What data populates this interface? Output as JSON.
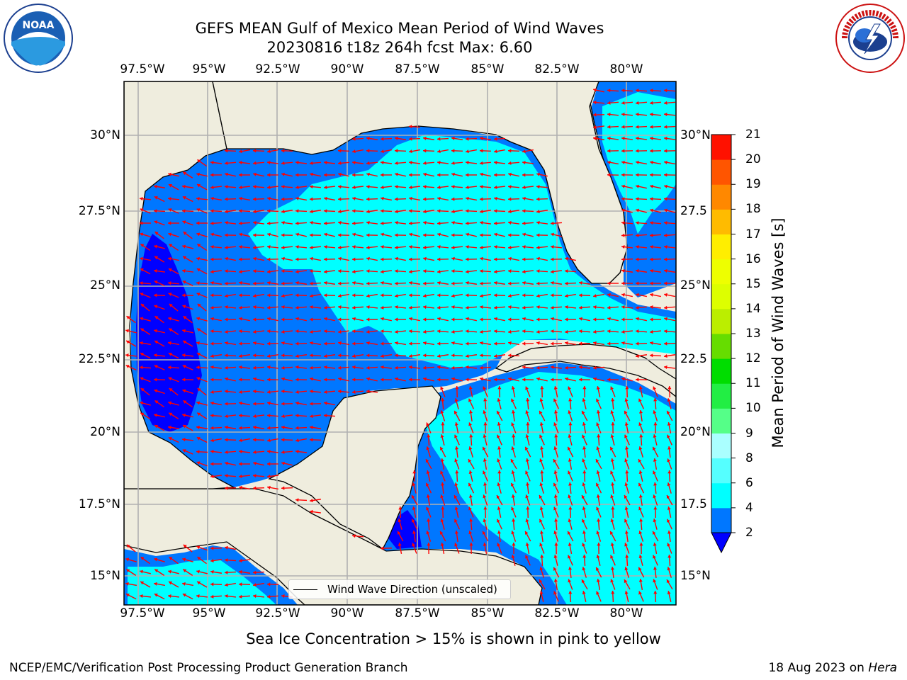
{
  "title": {
    "line1": "GEFS MEAN Gulf of Mexico Mean Period of Wind Waves",
    "line2": "20230816 t18z 264h fcst   Max: 6.60"
  },
  "logos": {
    "left": "NOAA",
    "right": "NATIONAL WEATHER SERVICE"
  },
  "map": {
    "x_ticks": [
      "97.5°W",
      "95°W",
      "92.5°W",
      "90°W",
      "87.5°W",
      "85°W",
      "82.5°W",
      "80°W"
    ],
    "y_ticks_left": [
      "30°N",
      "27.5°N",
      "25°N",
      "22.5°N",
      "20°N",
      "17.5°N",
      "15°N"
    ],
    "y_ticks_right": [
      "30°N",
      "27.5",
      "25°N",
      "22.5",
      "20°N",
      "17.5",
      "15°N"
    ],
    "legend_label": "Wind Wave Direction (unscaled)",
    "colors": {
      "land": "#efedde",
      "level_0_2": "#0000ff",
      "level_2_4": "#0077ff",
      "level_4_6": "#00ffff",
      "arrow": "#ff0000",
      "grid": "#b0b0b0"
    }
  },
  "colorbar": {
    "label": "Mean Period of Wind Waves [s]",
    "ticks": [
      "2",
      "4",
      "6",
      "8",
      "9",
      "10",
      "11",
      "12",
      "13",
      "14",
      "15",
      "16",
      "17",
      "18",
      "19",
      "20",
      "21"
    ],
    "colors": [
      "#0077ff",
      "#00ffff",
      "#55ffff",
      "#aaffff",
      "#55ff88",
      "#22ee44",
      "#00dd00",
      "#66dd00",
      "#bbee00",
      "#ddff00",
      "#eeff00",
      "#ffee00",
      "#ffbb00",
      "#ff8800",
      "#ff5500",
      "#ff1100"
    ],
    "extend_color": "#0000ff"
  },
  "subtitle": "Sea Ice Concentration > 15% is shown in pink to yellow",
  "footer": {
    "left": "NCEP/EMC/Verification Post Processing Product Generation Branch",
    "date": "18 Aug 2023 on ",
    "host": "Hera"
  }
}
